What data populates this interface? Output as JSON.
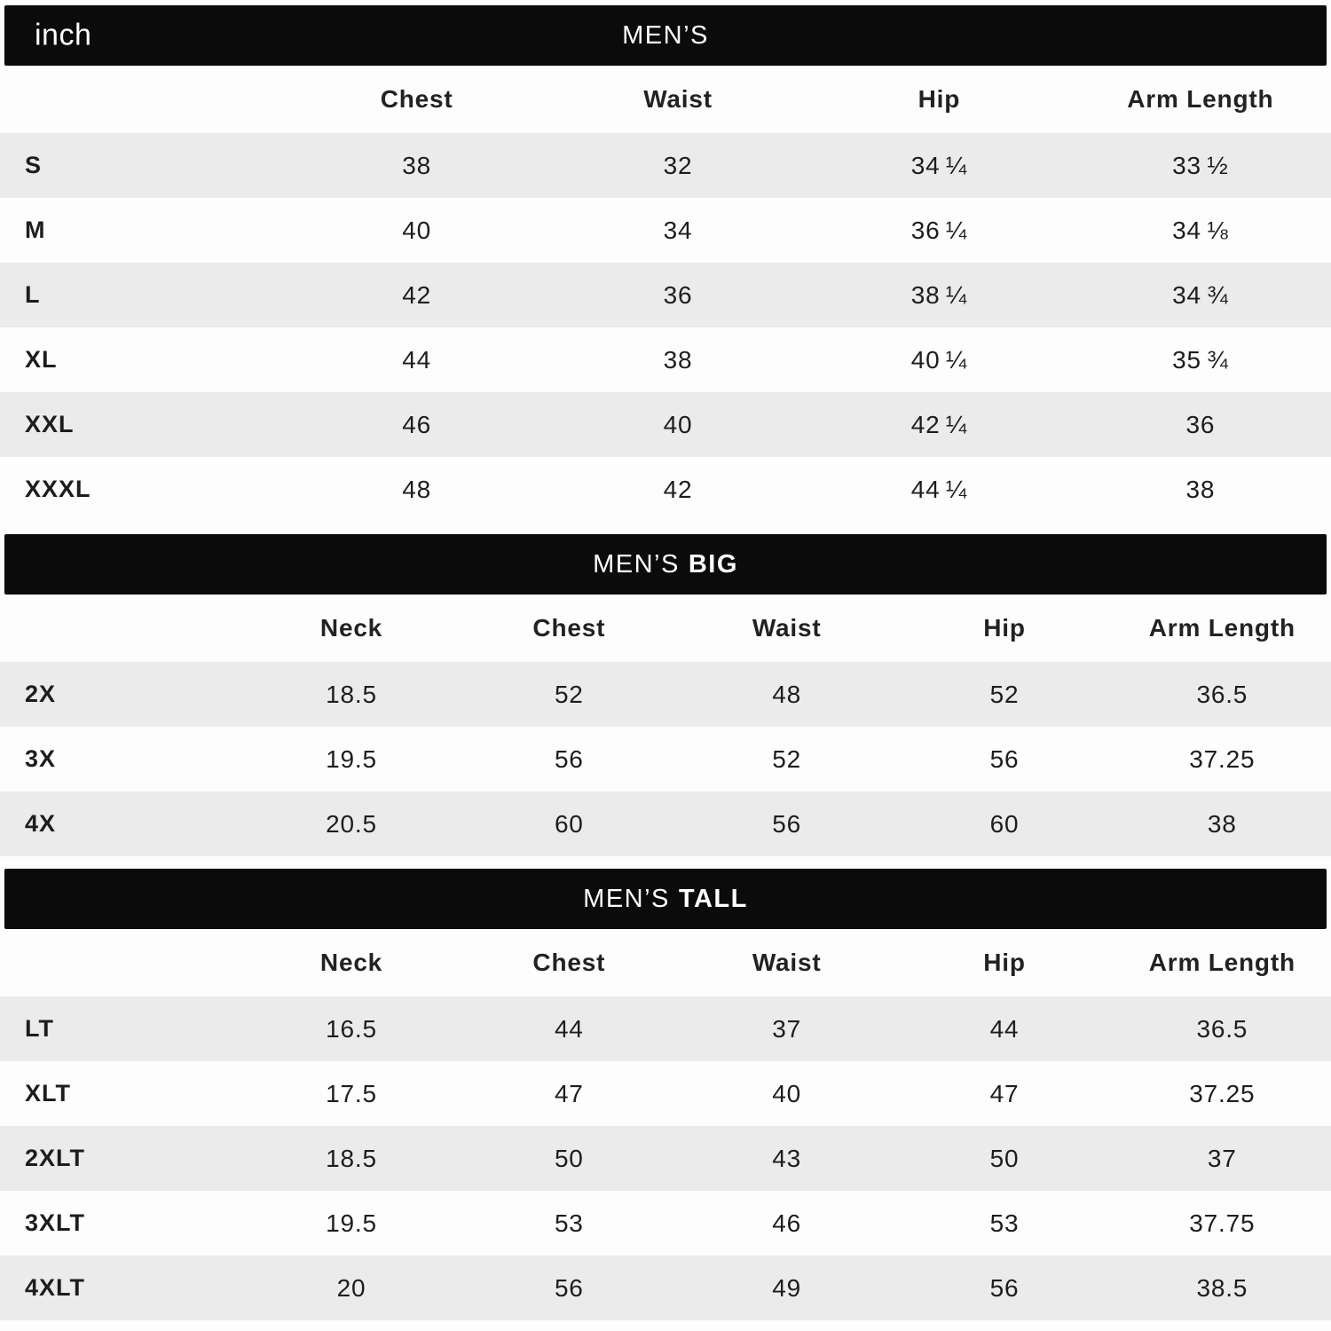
{
  "unit_label": "inch",
  "colors": {
    "bar_background": "#0b0b0b",
    "bar_text": "#ffffff",
    "stripe": "#ebebeb",
    "text": "#1d1d1d"
  },
  "sections": [
    {
      "title_prefix": "MEN’S",
      "title_suffix": "",
      "columns": [
        "",
        "Chest",
        "Waist",
        "Hip",
        "Arm Length"
      ],
      "rows": [
        {
          "label": "S",
          "values": [
            "38",
            "32",
            "34 ¼",
            "33 ½"
          ]
        },
        {
          "label": "M",
          "values": [
            "40",
            "34",
            "36 ¼",
            "34 ⅛"
          ]
        },
        {
          "label": "L",
          "values": [
            "42",
            "36",
            "38 ¼",
            "34 ¾"
          ]
        },
        {
          "label": "XL",
          "values": [
            "44",
            "38",
            "40 ¼",
            "35 ¾"
          ]
        },
        {
          "label": "XXL",
          "values": [
            "46",
            "40",
            "42 ¼",
            "36"
          ]
        },
        {
          "label": "XXXL",
          "values": [
            "48",
            "42",
            "44 ¼",
            "38"
          ]
        }
      ]
    },
    {
      "title_prefix": "MEN’S",
      "title_suffix": "BIG",
      "columns": [
        "",
        "Neck",
        "Chest",
        "Waist",
        "Hip",
        "Arm Length"
      ],
      "rows": [
        {
          "label": "2X",
          "values": [
            "18.5",
            "52",
            "48",
            "52",
            "36.5"
          ]
        },
        {
          "label": "3X",
          "values": [
            "19.5",
            "56",
            "52",
            "56",
            "37.25"
          ]
        },
        {
          "label": "4X",
          "values": [
            "20.5",
            "60",
            "56",
            "60",
            "38"
          ]
        }
      ]
    },
    {
      "title_prefix": "MEN’S",
      "title_suffix": "TALL",
      "columns": [
        "",
        "Neck",
        "Chest",
        "Waist",
        "Hip",
        "Arm Length"
      ],
      "rows": [
        {
          "label": "LT",
          "values": [
            "16.5",
            "44",
            "37",
            "44",
            "36.5"
          ]
        },
        {
          "label": "XLT",
          "values": [
            "17.5",
            "47",
            "40",
            "47",
            "37.25"
          ]
        },
        {
          "label": "2XLT",
          "values": [
            "18.5",
            "50",
            "43",
            "50",
            "37"
          ]
        },
        {
          "label": "3XLT",
          "values": [
            "19.5",
            "53",
            "46",
            "53",
            "37.75"
          ]
        },
        {
          "label": "4XLT",
          "values": [
            "20",
            "56",
            "49",
            "56",
            "38.5"
          ]
        }
      ]
    }
  ]
}
